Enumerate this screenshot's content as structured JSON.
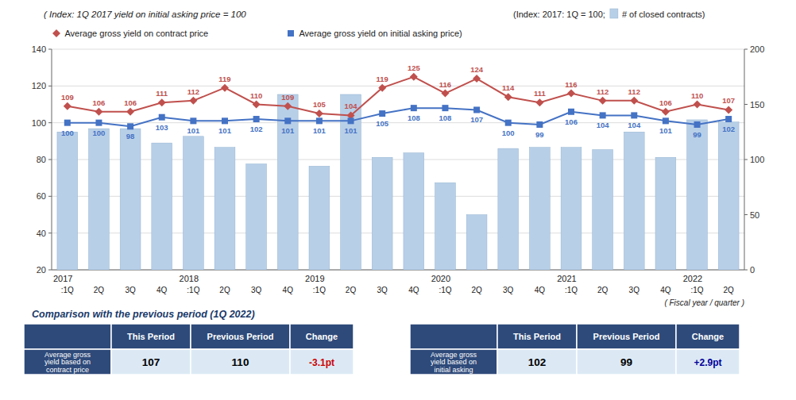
{
  "chart_data": {
    "type": "combo",
    "subtitle": "( Index: 1Q 2017 yield on initial asking price = 100",
    "y2label": "(Index: 2017: 1Q = 100;",
    "xlabel": "( Fiscal year / quarter )",
    "categories": [
      ":1Q",
      "2Q",
      "3Q",
      "4Q",
      ":1Q",
      "2Q",
      "3Q",
      "4Q",
      ":1Q",
      "2Q",
      "3Q",
      "4Q",
      ":1Q",
      "2Q",
      "3Q",
      "4Q",
      ":1Q",
      "2Q",
      "3Q",
      "4Q",
      ":1Q",
      "2Q"
    ],
    "category_groups": [
      "2017",
      null,
      null,
      null,
      "2018",
      null,
      null,
      null,
      "2019",
      null,
      null,
      null,
      "2020",
      null,
      null,
      null,
      "2021",
      null,
      null,
      null,
      "2022",
      null
    ],
    "series": [
      {
        "name": " # of closed contracts)",
        "type": "bar",
        "axis": "y2",
        "color": "#b8cfe8",
        "values": [
          125,
          128,
          128,
          115,
          121,
          111,
          96,
          159,
          94,
          159,
          102,
          106,
          79,
          50,
          110,
          111,
          111,
          109,
          125,
          102,
          136,
          134
        ]
      },
      {
        "name": " Average gross yield on contract price",
        "type": "line",
        "color": "#c0504d",
        "marker": "diamond",
        "values": [
          109,
          106,
          106,
          111,
          112,
          119,
          110,
          109,
          105,
          104,
          119,
          125,
          116,
          124,
          114,
          111,
          116,
          112,
          112,
          106,
          110,
          107
        ]
      },
      {
        "name": " Average gross yield on initial asking price)",
        "type": "line",
        "color": "#4472c4",
        "marker": "square",
        "values": [
          100,
          100,
          98,
          103,
          101,
          101,
          102,
          101,
          101,
          101,
          105,
          108,
          108,
          107,
          100,
          99,
          106,
          104,
          104,
          101,
          99,
          102
        ]
      }
    ],
    "ylim": [
      20,
      140
    ],
    "yticks": [
      20,
      40,
      60,
      80,
      100,
      120,
      140
    ],
    "y2lim": [
      0,
      200
    ],
    "y2ticks": [
      0,
      50,
      100,
      150,
      200
    ],
    "grid": true,
    "data_labels": true,
    "tables_title": "Comparison with the previous period (1Q 2022)",
    "tables": [
      {
        "label": "Average gross\nyield based on\ncontract price",
        "columns": [
          "This Period",
          "Previous Period",
          "Change"
        ],
        "values": [
          107,
          110,
          -3.1
        ],
        "value_labels": [
          "107",
          "110",
          "-3.1pt"
        ],
        "color": "#cc0000"
      },
      {
        "label": "Average gross\nyield based on\ninitial asking",
        "columns": [
          "This Period",
          "Previous Period",
          "Change"
        ],
        "values": [
          102,
          99,
          2.9
        ],
        "value_labels": [
          "102",
          "99",
          "+2.9pt"
        ],
        "color": "#000099"
      }
    ]
  }
}
